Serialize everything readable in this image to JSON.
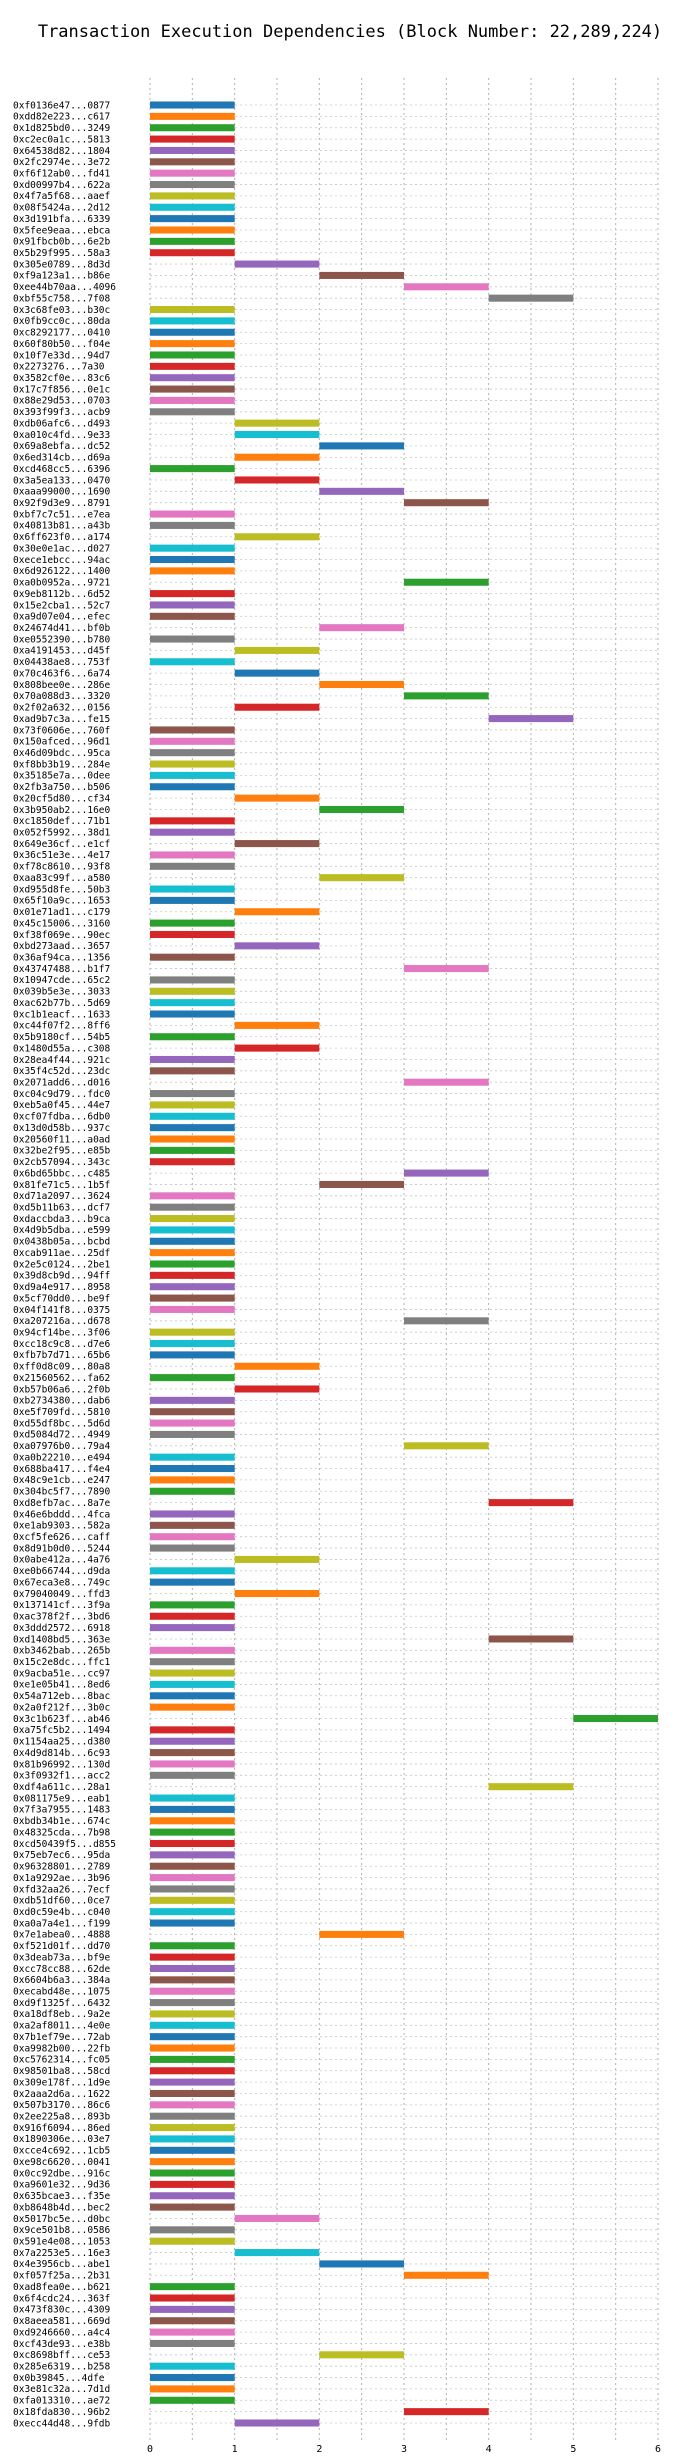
{
  "chart_data": {
    "type": "gantt",
    "title": "Transaction Execution Dependencies (Block Number: 22,289,224)",
    "x_ticks": [
      0,
      1,
      2,
      3,
      4,
      5,
      6
    ],
    "xlim": [
      0,
      6
    ],
    "grid": true,
    "colors": [
      "#1f77b4",
      "#ff7f0e",
      "#2ca02c",
      "#d62728",
      "#9467bd",
      "#8c564b",
      "#e377c2",
      "#7f7f7f",
      "#bcbd22",
      "#17becf"
    ],
    "transactions": [
      {
        "label": "0xf0136e47...0877",
        "start": 0
      },
      {
        "label": "0xdd82e223...c617",
        "start": 0
      },
      {
        "label": "0x1d825bd0...3249",
        "start": 0
      },
      {
        "label": "0xc2ec0a1c...5813",
        "start": 0
      },
      {
        "label": "0x64538d82...1804",
        "start": 0
      },
      {
        "label": "0x2fc2974e...3e72",
        "start": 0
      },
      {
        "label": "0xf6f12ab0...fd41",
        "start": 0
      },
      {
        "label": "0xd00997b4...622a",
        "start": 0
      },
      {
        "label": "0x4f7a5f68...aaef",
        "start": 0
      },
      {
        "label": "0x08f5424a...2d12",
        "start": 0
      },
      {
        "label": "0x3d191bfa...6339",
        "start": 0
      },
      {
        "label": "0x5fee9eaa...ebca",
        "start": 0
      },
      {
        "label": "0x91fbcb0b...6e2b",
        "start": 0
      },
      {
        "label": "0x5b29f995...58a3",
        "start": 0
      },
      {
        "label": "0x305e0789...8d3d",
        "start": 1
      },
      {
        "label": "0xf9a123a1...b86e",
        "start": 2
      },
      {
        "label": "0xee44b70aa...4096",
        "start": 3
      },
      {
        "label": "0xbf55c758...7f08",
        "start": 4
      },
      {
        "label": "0x3c68fe03...b30c",
        "start": 0
      },
      {
        "label": "0x0fb9cc0c...80da",
        "start": 0
      },
      {
        "label": "0xc8292177...0410",
        "start": 0
      },
      {
        "label": "0x60f80b50...f04e",
        "start": 0
      },
      {
        "label": "0x10f7e33d...94d7",
        "start": 0
      },
      {
        "label": "0x2273276...7a30",
        "start": 0
      },
      {
        "label": "0x3582cf0e...83c6",
        "start": 0
      },
      {
        "label": "0x17c7f856...0e1c",
        "start": 0
      },
      {
        "label": "0x88e29d53...0703",
        "start": 0
      },
      {
        "label": "0x393f99f3...acb9",
        "start": 0
      },
      {
        "label": "0xdb06afc6...d493",
        "start": 1
      },
      {
        "label": "0xa010c4fd...9e33",
        "start": 1
      },
      {
        "label": "0x69a8ebfa...dc52",
        "start": 2
      },
      {
        "label": "0x6ed314cb...d69a",
        "start": 1
      },
      {
        "label": "0xcd468cc5...6396",
        "start": 0
      },
      {
        "label": "0x3a5ea133...0470",
        "start": 1
      },
      {
        "label": "0xaaa99000...1690",
        "start": 2
      },
      {
        "label": "0x92f9d3e9...8791",
        "start": 3
      },
      {
        "label": "0xbf7c7c51...e7ea",
        "start": 0
      },
      {
        "label": "0x40813b81...a43b",
        "start": 0
      },
      {
        "label": "0x6ff623f0...a174",
        "start": 1
      },
      {
        "label": "0x30e0e1ac...d027",
        "start": 0
      },
      {
        "label": "0xece1ebcc...94ac",
        "start": 0
      },
      {
        "label": "0x6d926122...1400",
        "start": 0
      },
      {
        "label": "0xa0b0952a...9721",
        "start": 3
      },
      {
        "label": "0x9eb8112b...6d52",
        "start": 0
      },
      {
        "label": "0x15e2cba1...52c7",
        "start": 0
      },
      {
        "label": "0xa9d07e04...efec",
        "start": 0
      },
      {
        "label": "0x24674d41...bf0b",
        "start": 2
      },
      {
        "label": "0xe0552390...b780",
        "start": 0
      },
      {
        "label": "0xa4191453...d45f",
        "start": 1
      },
      {
        "label": "0x04438ae8...753f",
        "start": 0
      },
      {
        "label": "0x70c463f6...6a74",
        "start": 1
      },
      {
        "label": "0x808bee0e...286e",
        "start": 2
      },
      {
        "label": "0x70a088d3...3320",
        "start": 3
      },
      {
        "label": "0x2f02a632...0156",
        "start": 1
      },
      {
        "label": "0xad9b7c3a...fe15",
        "start": 4
      },
      {
        "label": "0x73f0606e...760f",
        "start": 0
      },
      {
        "label": "0x150afced...96d1",
        "start": 0
      },
      {
        "label": "0x46d09bdc...95ca",
        "start": 0
      },
      {
        "label": "0xf8bb3b19...284e",
        "start": 0
      },
      {
        "label": "0x35185e7a...0dee",
        "start": 0
      },
      {
        "label": "0x2fb3a750...b506",
        "start": 0
      },
      {
        "label": "0x20cf5d80...cf34",
        "start": 1
      },
      {
        "label": "0x3b950ab2...16e0",
        "start": 2
      },
      {
        "label": "0xc1850def...71b1",
        "start": 0
      },
      {
        "label": "0x052f5992...38d1",
        "start": 0
      },
      {
        "label": "0x649e36cf...e1cf",
        "start": 1
      },
      {
        "label": "0x36c51e3e...4e17",
        "start": 0
      },
      {
        "label": "0xf78c8610...93f8",
        "start": 0
      },
      {
        "label": "0xaa83c99f...a580",
        "start": 2
      },
      {
        "label": "0xd955d8fe...50b3",
        "start": 0
      },
      {
        "label": "0x65f10a9c...1653",
        "start": 0
      },
      {
        "label": "0x01e71ad1...c179",
        "start": 1
      },
      {
        "label": "0x45c15006...3160",
        "start": 0
      },
      {
        "label": "0xf38f069e...90ec",
        "start": 0
      },
      {
        "label": "0xbd273aad...3657",
        "start": 1
      },
      {
        "label": "0x36af94ca...1356",
        "start": 0
      },
      {
        "label": "0x43747488...b1f7",
        "start": 3
      },
      {
        "label": "0x10947cde...65c2",
        "start": 0
      },
      {
        "label": "0x039b5e3e...3033",
        "start": 0
      },
      {
        "label": "0xac62b77b...5d69",
        "start": 0
      },
      {
        "label": "0xc1b1eacf...1633",
        "start": 0
      },
      {
        "label": "0xc44f07f2...8ff6",
        "start": 1
      },
      {
        "label": "0x5b9180cf...54b5",
        "start": 0
      },
      {
        "label": "0x1480d55a...c308",
        "start": 1
      },
      {
        "label": "0x28ea4f44...921c",
        "start": 0
      },
      {
        "label": "0x35f4c52d...23dc",
        "start": 0
      },
      {
        "label": "0x2071add6...d016",
        "start": 3
      },
      {
        "label": "0xc04c9d79...fdc0",
        "start": 0
      },
      {
        "label": "0xeb5a0f45...44e7",
        "start": 0
      },
      {
        "label": "0xcf07fdba...6db0",
        "start": 0
      },
      {
        "label": "0x13d0d58b...937c",
        "start": 0
      },
      {
        "label": "0x20560f11...a0ad",
        "start": 0
      },
      {
        "label": "0x32be2f95...e85b",
        "start": 0
      },
      {
        "label": "0x2cb57094...343c",
        "start": 0
      },
      {
        "label": "0x6bd65bbc...c485",
        "start": 3
      },
      {
        "label": "0x81fe71c5...1b5f",
        "start": 2
      },
      {
        "label": "0xd71a2097...3624",
        "start": 0
      },
      {
        "label": "0xd5b11b63...dcf7",
        "start": 0
      },
      {
        "label": "0xdaccbda3...b9ca",
        "start": 0
      },
      {
        "label": "0x4d9b5dba...e599",
        "start": 0
      },
      {
        "label": "0x0438b05a...bcbd",
        "start": 0
      },
      {
        "label": "0xcab911ae...25df",
        "start": 0
      },
      {
        "label": "0x2e5c0124...2be1",
        "start": 0
      },
      {
        "label": "0x39d8cb9d...94ff",
        "start": 0
      },
      {
        "label": "0xd9a4e917...8958",
        "start": 0
      },
      {
        "label": "0x5cf70dd0...be9f",
        "start": 0
      },
      {
        "label": "0x04f141f8...0375",
        "start": 0
      },
      {
        "label": "0xa207216a...d678",
        "start": 3
      },
      {
        "label": "0x94cf14be...3f06",
        "start": 0
      },
      {
        "label": "0xcc18c9c8...d7e6",
        "start": 0
      },
      {
        "label": "0xfb7b7d71...65b6",
        "start": 0
      },
      {
        "label": "0xff0d8c09...80a8",
        "start": 1
      },
      {
        "label": "0x21560562...fa62",
        "start": 0
      },
      {
        "label": "0xb57b06a6...2f0b",
        "start": 1
      },
      {
        "label": "0xb2734380...dab6",
        "start": 0
      },
      {
        "label": "0xe5f709fd...5810",
        "start": 0
      },
      {
        "label": "0xd55df8bc...5d6d",
        "start": 0
      },
      {
        "label": "0xd5084d72...4949",
        "start": 0
      },
      {
        "label": "0xa07976b0...79a4",
        "start": 3
      },
      {
        "label": "0xa0b22210...e494",
        "start": 0
      },
      {
        "label": "0x688ba417...f4e4",
        "start": 0
      },
      {
        "label": "0x48c9e1cb...e247",
        "start": 0
      },
      {
        "label": "0x304bc5f7...7890",
        "start": 0
      },
      {
        "label": "0xd8efb7ac...8a7e",
        "start": 4
      },
      {
        "label": "0x46e6bddd...4fca",
        "start": 0
      },
      {
        "label": "0xe1ab9303...582a",
        "start": 0
      },
      {
        "label": "0xcf5fe626...caff",
        "start": 0
      },
      {
        "label": "0x8d91b0d0...5244",
        "start": 0
      },
      {
        "label": "0x0abe412a...4a76",
        "start": 1
      },
      {
        "label": "0xe0b66744...d9da",
        "start": 0
      },
      {
        "label": "0x67eca3e8...749c",
        "start": 0
      },
      {
        "label": "0x79040049...ffd3",
        "start": 1
      },
      {
        "label": "0x137141cf...3f9a",
        "start": 0
      },
      {
        "label": "0xac378f2f...3bd6",
        "start": 0
      },
      {
        "label": "0x3ddd2572...6918",
        "start": 0
      },
      {
        "label": "0xd1408bd5...363e",
        "start": 4
      },
      {
        "label": "0xb3462bab...265b",
        "start": 0
      },
      {
        "label": "0x15c2e8dc...ffc1",
        "start": 0
      },
      {
        "label": "0x9acba51e...cc97",
        "start": 0
      },
      {
        "label": "0xe1e05b41...8ed6",
        "start": 0
      },
      {
        "label": "0x54a712eb...8bac",
        "start": 0
      },
      {
        "label": "0x2a0f212f...3b0c",
        "start": 0
      },
      {
        "label": "0x3c1b623f...ab46",
        "start": 5
      },
      {
        "label": "0xa75fc5b2...1494",
        "start": 0
      },
      {
        "label": "0x1154aa25...d380",
        "start": 0
      },
      {
        "label": "0x4d9d814b...6c93",
        "start": 0
      },
      {
        "label": "0x81b96992...130d",
        "start": 0
      },
      {
        "label": "0x3f0932f1...acc2",
        "start": 0
      },
      {
        "label": "0xdf4a611c...28a1",
        "start": 4
      },
      {
        "label": "0x081175e9...eab1",
        "start": 0
      },
      {
        "label": "0x7f3a7955...1483",
        "start": 0
      },
      {
        "label": "0xbdb34b1e...674c",
        "start": 0
      },
      {
        "label": "0x48325cda...7b98",
        "start": 0
      },
      {
        "label": "0xcd50439f5...d855",
        "start": 0
      },
      {
        "label": "0x75eb7ec6...95da",
        "start": 0
      },
      {
        "label": "0x96328801...2789",
        "start": 0
      },
      {
        "label": "0x1a9292ae...3b96",
        "start": 0
      },
      {
        "label": "0xfd32aa26...7ecf",
        "start": 0
      },
      {
        "label": "0xdb51df60...0ce7",
        "start": 0
      },
      {
        "label": "0xd0c59e4b...c040",
        "start": 0
      },
      {
        "label": "0xa0a7a4e1...f199",
        "start": 0
      },
      {
        "label": "0x7e1abea0...4888",
        "start": 2
      },
      {
        "label": "0xf521d01f...dd70",
        "start": 0
      },
      {
        "label": "0x3deab73a...bf9e",
        "start": 0
      },
      {
        "label": "0xcc78cc88...62de",
        "start": 0
      },
      {
        "label": "0x6604b6a3...384a",
        "start": 0
      },
      {
        "label": "0xecabd48e...1075",
        "start": 0
      },
      {
        "label": "0xd9f1325f...6432",
        "start": 0
      },
      {
        "label": "0xa18df8eb...9a2e",
        "start": 0
      },
      {
        "label": "0xa2af8011...4e0e",
        "start": 0
      },
      {
        "label": "0x7b1ef79e...72ab",
        "start": 0
      },
      {
        "label": "0xa9982b00...22fb",
        "start": 0
      },
      {
        "label": "0xc5762314...fc05",
        "start": 0
      },
      {
        "label": "0x98501ba8...58cd",
        "start": 0
      },
      {
        "label": "0x309e178f...1d9e",
        "start": 0
      },
      {
        "label": "0x2aaa2d6a...1622",
        "start": 0
      },
      {
        "label": "0x507b3170...86c6",
        "start": 0
      },
      {
        "label": "0x2ee225a8...893b",
        "start": 0
      },
      {
        "label": "0x916f6094...86ed",
        "start": 0
      },
      {
        "label": "0x1890306e...03e7",
        "start": 0
      },
      {
        "label": "0xcce4c692...1cb5",
        "start": 0
      },
      {
        "label": "0xe98c6620...0041",
        "start": 0
      },
      {
        "label": "0x0cc92dbe...916c",
        "start": 0
      },
      {
        "label": "0xa9601e32...9d36",
        "start": 0
      },
      {
        "label": "0x635bcae3...f35e",
        "start": 0
      },
      {
        "label": "0xb8648b4d...bec2",
        "start": 0
      },
      {
        "label": "0x5017bc5e...d0bc",
        "start": 1
      },
      {
        "label": "0x9ce501b8...0586",
        "start": 0
      },
      {
        "label": "0x591e4e08...1053",
        "start": 0
      },
      {
        "label": "0x7a2253e5...16e3",
        "start": 1
      },
      {
        "label": "0x4e3956cb...abe1",
        "start": 2
      },
      {
        "label": "0xf057f25a...2b31",
        "start": 3
      },
      {
        "label": "0xad8fea0e...b621",
        "start": 0
      },
      {
        "label": "0x6f4cdc24...363f",
        "start": 0
      },
      {
        "label": "0x473f830c...4309",
        "start": 0
      },
      {
        "label": "0x8aeea581...669d",
        "start": 0
      },
      {
        "label": "0xd9246660...a4c4",
        "start": 0
      },
      {
        "label": "0xcf43de93...e38b",
        "start": 0
      },
      {
        "label": "0xc8698bff...ce53",
        "start": 2
      },
      {
        "label": "0x285e6319...b258",
        "start": 0
      },
      {
        "label": "0x0b39845...4dfe",
        "start": 0
      },
      {
        "label": "0x3e81c32a...7d1d",
        "start": 0
      },
      {
        "label": "0xfa013310...ae72",
        "start": 0
      },
      {
        "label": "0x18fda830...96b2",
        "start": 3
      },
      {
        "label": "0xecc44d48...9fdb",
        "start": 1
      }
    ]
  }
}
